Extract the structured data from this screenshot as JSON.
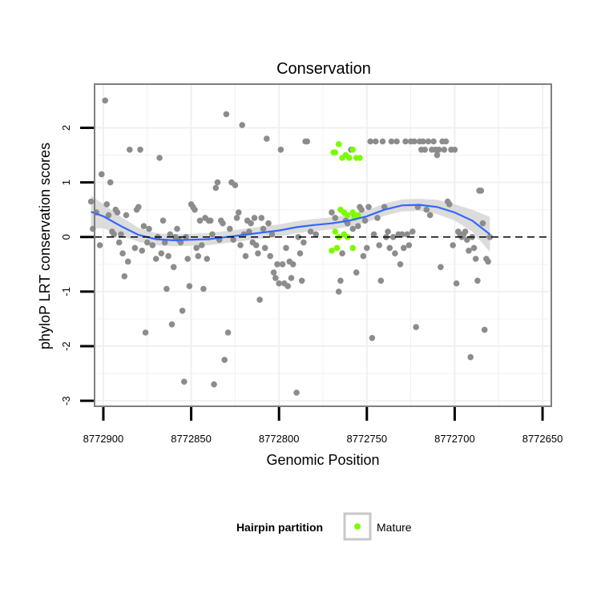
{
  "chart_data": {
    "type": "scatter",
    "title": "Conservation",
    "xlabel": "Genomic Position",
    "ylabel": "phyloP LRT conservation scores",
    "x_reversed": true,
    "xlim": [
      8772905,
      8772645
    ],
    "ylim": [
      -3.1,
      2.8
    ],
    "x_ticks": [
      8772900,
      8772850,
      8772800,
      8772750,
      8772700,
      8772650
    ],
    "x_tick_labels": [
      "8772900",
      "8772850",
      "8772800",
      "8772750",
      "8772700",
      "8772650"
    ],
    "y_ticks": [
      -3,
      -2,
      -1,
      0,
      1,
      2
    ],
    "y_tick_labels": [
      "-3",
      "-2",
      "-1",
      "0",
      "1",
      "2"
    ],
    "reference_line": {
      "y": 0,
      "style": "dashed",
      "color": "#000000"
    },
    "grid": true,
    "legend": {
      "title": "Hairpin partition",
      "placement": "bottom",
      "entries": [
        {
          "label": "Mature",
          "color": "#7CFC00"
        }
      ]
    },
    "colors": {
      "other": "#8c8c8c",
      "mature": "#7CFC00",
      "smooth_line": "#3366ff",
      "smooth_band": "#d6d6d6",
      "panel_border": "#7f7f7f"
    },
    "series": [
      {
        "group": "other",
        "points": [
          [
            8772907,
            0.65
          ],
          [
            8772906,
            0.15
          ],
          [
            8772904,
            0.45
          ],
          [
            8772902,
            -0.15
          ],
          [
            8772901,
            1.15
          ],
          [
            8772899,
            2.5
          ],
          [
            8772898,
            0.6
          ],
          [
            8772897,
            0.4
          ],
          [
            8772896,
            1.0
          ],
          [
            8772895,
            0.1
          ],
          [
            8772894,
            0.05
          ],
          [
            8772893,
            0.5
          ],
          [
            8772892,
            0.45
          ],
          [
            8772891,
            -0.1
          ],
          [
            8772890,
            0.05
          ],
          [
            8772889,
            -0.3
          ],
          [
            8772888,
            -0.72
          ],
          [
            8772887,
            0.4
          ],
          [
            8772886,
            -0.45
          ],
          [
            8772885,
            1.6
          ],
          [
            8772882,
            -0.2
          ],
          [
            8772881,
            0.5
          ],
          [
            8772880,
            0.55
          ],
          [
            8772879,
            1.6
          ],
          [
            8772878,
            -0.25
          ],
          [
            8772877,
            0.2
          ],
          [
            8772876,
            -1.75
          ],
          [
            8772875,
            -0.1
          ],
          [
            8772874,
            0.15
          ],
          [
            8772872,
            -0.15
          ],
          [
            8772870,
            -0.4
          ],
          [
            8772869,
            0.0
          ],
          [
            8772868,
            1.45
          ],
          [
            8772867,
            -0.3
          ],
          [
            8772866,
            0.3
          ],
          [
            8772865,
            -0.1
          ],
          [
            8772864,
            -0.95
          ],
          [
            8772863,
            -0.35
          ],
          [
            8772862,
            0.05
          ],
          [
            8772861,
            -1.6
          ],
          [
            8772860,
            -0.55
          ],
          [
            8772859,
            0.0
          ],
          [
            8772858,
            0.15
          ],
          [
            8772857,
            -0.05
          ],
          [
            8772856,
            -0.1
          ],
          [
            8772855,
            -1.35
          ],
          [
            8772854,
            -2.65
          ],
          [
            8772853,
            0.0
          ],
          [
            8772852,
            -0.4
          ],
          [
            8772851,
            -0.9
          ],
          [
            8772850,
            0.6
          ],
          [
            8772849,
            0.55
          ],
          [
            8772848,
            0.5
          ],
          [
            8772847,
            -0.2
          ],
          [
            8772846,
            -0.35
          ],
          [
            8772845,
            0.3
          ],
          [
            8772844,
            -0.15
          ],
          [
            8772843,
            -0.95
          ],
          [
            8772842,
            0.35
          ],
          [
            8772841,
            -0.4
          ],
          [
            8772840,
            0.3
          ],
          [
            8772839,
            0.3
          ],
          [
            8772838,
            0.05
          ],
          [
            8772837,
            -2.7
          ],
          [
            8772836,
            0.9
          ],
          [
            8772835,
            1.0
          ],
          [
            8772834,
            -0.05
          ],
          [
            8772833,
            0.3
          ],
          [
            8772832,
            0.25
          ],
          [
            8772831,
            -2.25
          ],
          [
            8772830,
            2.25
          ],
          [
            8772829,
            -1.75
          ],
          [
            8772828,
            0.15
          ],
          [
            8772827,
            1.0
          ],
          [
            8772826,
            -0.05
          ],
          [
            8772825,
            0.95
          ],
          [
            8772824,
            0.35
          ],
          [
            8772823,
            0.45
          ],
          [
            8772822,
            -0.15
          ],
          [
            8772821,
            2.05
          ],
          [
            8772820,
            0.05
          ],
          [
            8772819,
            -0.35
          ],
          [
            8772818,
            0.3
          ],
          [
            8772817,
            0.1
          ],
          [
            8772816,
            0.25
          ],
          [
            8772815,
            -0.1
          ],
          [
            8772814,
            0.35
          ],
          [
            8772813,
            -0.15
          ],
          [
            8772812,
            -0.3
          ],
          [
            8772811,
            -1.15
          ],
          [
            8772810,
            0.35
          ],
          [
            8772809,
            0.15
          ],
          [
            8772808,
            -0.2
          ],
          [
            8772807,
            1.8
          ],
          [
            8772806,
            0.25
          ],
          [
            8772805,
            -0.35
          ],
          [
            8772804,
            0.05
          ],
          [
            8772803,
            -0.65
          ],
          [
            8772802,
            -0.75
          ],
          [
            8772801,
            -0.5
          ],
          [
            8772800,
            -0.85
          ],
          [
            8772799,
            1.6
          ],
          [
            8772798,
            -0.5
          ],
          [
            8772797,
            -0.85
          ],
          [
            8772796,
            -0.2
          ],
          [
            8772795,
            -0.9
          ],
          [
            8772794,
            -0.45
          ],
          [
            8772793,
            -0.75
          ],
          [
            8772792,
            -0.5
          ],
          [
            8772790,
            -2.85
          ],
          [
            8772789,
            0.0
          ],
          [
            8772788,
            -0.3
          ],
          [
            8772787,
            -0.8
          ],
          [
            8772786,
            -0.1
          ],
          [
            8772785,
            1.75
          ],
          [
            8772784,
            1.75
          ],
          [
            8772782,
            0.1
          ],
          [
            8772779,
            0.05
          ],
          [
            8772770,
            0.45
          ],
          [
            8772768,
            0.35
          ],
          [
            8772766,
            -1.0
          ],
          [
            8772765,
            -0.8
          ],
          [
            8772764,
            -0.3
          ],
          [
            8772763,
            0.45
          ],
          [
            8772762,
            0.3
          ],
          [
            8772761,
            0.25
          ],
          [
            8772759,
            1.6
          ],
          [
            8772758,
            0.15
          ],
          [
            8772757,
            0.4
          ],
          [
            8772756,
            -0.65
          ],
          [
            8772755,
            0.2
          ],
          [
            8772754,
            0.55
          ],
          [
            8772753,
            0.5
          ],
          [
            8772752,
            -0.35
          ],
          [
            8772751,
            0.3
          ],
          [
            8772750,
            -0.2
          ],
          [
            8772749,
            0.55
          ],
          [
            8772748,
            1.75
          ],
          [
            8772747,
            -1.85
          ],
          [
            8772746,
            0.05
          ],
          [
            8772745,
            1.75
          ],
          [
            8772744,
            0.35
          ],
          [
            8772743,
            -0.15
          ],
          [
            8772742,
            -0.8
          ],
          [
            8772741,
            1.75
          ],
          [
            8772740,
            0.55
          ],
          [
            8772739,
            0.0
          ],
          [
            8772738,
            0.1
          ],
          [
            8772737,
            -0.2
          ],
          [
            8772736,
            1.75
          ],
          [
            8772735,
            0.0
          ],
          [
            8772734,
            -0.3
          ],
          [
            8772733,
            1.75
          ],
          [
            8772732,
            0.05
          ],
          [
            8772731,
            -0.5
          ],
          [
            8772730,
            0.05
          ],
          [
            8772729,
            -0.2
          ],
          [
            8772728,
            1.75
          ],
          [
            8772727,
            0.05
          ],
          [
            8772726,
            -0.15
          ],
          [
            8772725,
            1.75
          ],
          [
            8772724,
            0.1
          ],
          [
            8772723,
            1.75
          ],
          [
            8772722,
            -1.65
          ],
          [
            8772721,
            0.55
          ],
          [
            8772720,
            1.75
          ],
          [
            8772719,
            1.6
          ],
          [
            8772718,
            1.75
          ],
          [
            8772717,
            1.6
          ],
          [
            8772716,
            0.5
          ],
          [
            8772715,
            1.75
          ],
          [
            8772714,
            0.4
          ],
          [
            8772713,
            1.6
          ],
          [
            8772712,
            1.75
          ],
          [
            8772711,
            1.6
          ],
          [
            8772710,
            1.5
          ],
          [
            8772709,
            1.6
          ],
          [
            8772708,
            -0.55
          ],
          [
            8772707,
            1.75
          ],
          [
            8772706,
            1.6
          ],
          [
            8772705,
            1.75
          ],
          [
            8772704,
            0.65
          ],
          [
            8772703,
            0.6
          ],
          [
            8772702,
            1.6
          ],
          [
            8772701,
            -0.15
          ],
          [
            8772700,
            1.6
          ],
          [
            8772699,
            -0.85
          ],
          [
            8772698,
            0.1
          ],
          [
            8772697,
            0.05
          ],
          [
            8772696,
            0.0
          ],
          [
            8772695,
            0.05
          ],
          [
            8772694,
            0.1
          ],
          [
            8772693,
            -0.05
          ],
          [
            8772692,
            -0.25
          ],
          [
            8772691,
            -2.2
          ],
          [
            8772690,
            0.0
          ],
          [
            8772689,
            -0.2
          ],
          [
            8772688,
            -0.4
          ],
          [
            8772687,
            -0.8
          ],
          [
            8772686,
            0.85
          ],
          [
            8772685,
            0.85
          ],
          [
            8772684,
            0.25
          ],
          [
            8772683,
            -1.7
          ],
          [
            8772682,
            -0.4
          ],
          [
            8772681,
            -0.45
          ],
          [
            8772680,
            0.0
          ]
        ]
      },
      {
        "group": "mature",
        "name": "Mature",
        "points": [
          [
            8772769,
            1.55
          ],
          [
            8772768,
            1.55
          ],
          [
            8772766,
            1.7
          ],
          [
            8772764,
            1.45
          ],
          [
            8772762,
            1.5
          ],
          [
            8772760,
            1.45
          ],
          [
            8772758,
            1.6
          ],
          [
            8772756,
            1.45
          ],
          [
            8772754,
            1.45
          ],
          [
            8772765,
            0.5
          ],
          [
            8772763,
            0.45
          ],
          [
            8772761,
            0.4
          ],
          [
            8772758,
            0.45
          ],
          [
            8772757,
            0.35
          ],
          [
            8772755,
            0.4
          ],
          [
            8772768,
            0.1
          ],
          [
            8772766,
            0.0
          ],
          [
            8772763,
            0.05
          ],
          [
            8772761,
            0.0
          ],
          [
            8772770,
            -0.25
          ],
          [
            8772767,
            -0.2
          ],
          [
            8772758,
            -0.2
          ]
        ]
      }
    ],
    "smooth": {
      "method": "loess",
      "x": [
        8772907,
        8772900,
        8772890,
        8772880,
        8772870,
        8772860,
        8772850,
        8772840,
        8772830,
        8772820,
        8772810,
        8772800,
        8772790,
        8772780,
        8772770,
        8772760,
        8772750,
        8772740,
        8772730,
        8772720,
        8772710,
        8772700,
        8772690,
        8772680
      ],
      "y": [
        0.46,
        0.38,
        0.2,
        0.04,
        -0.04,
        -0.06,
        -0.05,
        -0.04,
        0.0,
        0.04,
        0.08,
        0.12,
        0.18,
        0.22,
        0.25,
        0.3,
        0.38,
        0.5,
        0.58,
        0.59,
        0.55,
        0.45,
        0.3,
        0.05
      ],
      "band_half_width": [
        0.3,
        0.22,
        0.17,
        0.13,
        0.11,
        0.11,
        0.11,
        0.11,
        0.11,
        0.11,
        0.11,
        0.11,
        0.11,
        0.11,
        0.11,
        0.11,
        0.11,
        0.11,
        0.11,
        0.11,
        0.13,
        0.15,
        0.2,
        0.32
      ]
    }
  }
}
